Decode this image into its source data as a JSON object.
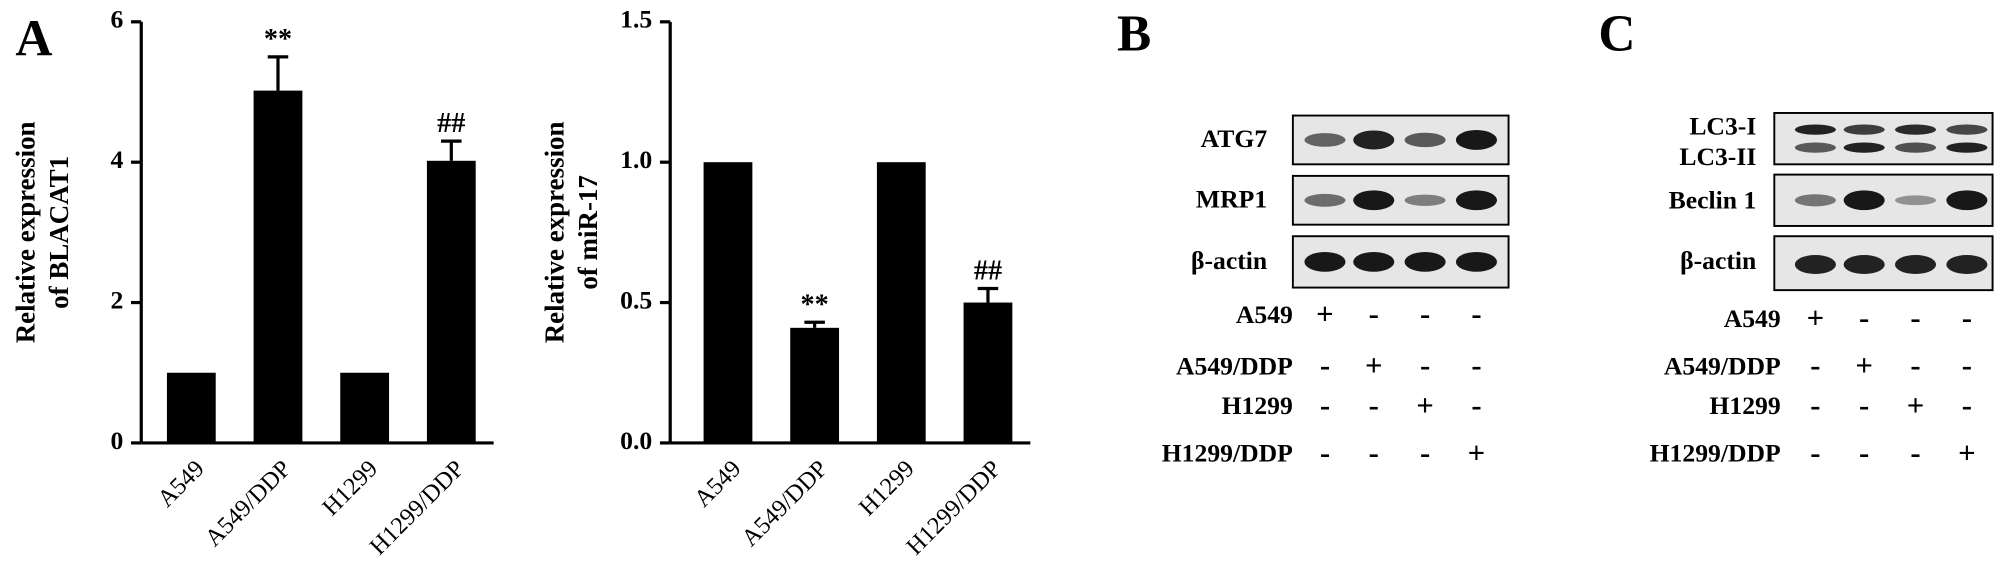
{
  "panel_labels": [
    "A",
    "B",
    "C"
  ],
  "chart_data": [
    {
      "type": "bar",
      "ylabel": [
        "Relative expression",
        "of  BLACAT1"
      ],
      "categories": [
        "A549",
        "A549/DDP",
        "H1299",
        "H1299/DDP"
      ],
      "values": [
        1,
        5.02,
        1,
        4.02
      ],
      "errors": [
        0,
        0.48,
        0,
        0.28
      ],
      "annotations": [
        null,
        "**",
        null,
        "##"
      ],
      "color": "#000000",
      "ylim": [
        0,
        6
      ],
      "yticks": [
        0,
        2,
        4,
        6
      ]
    },
    {
      "type": "bar",
      "ylabel": [
        "Relative expression",
        "of miR-17"
      ],
      "categories": [
        "A549",
        "A549/DDP",
        "H1299",
        "H1299/DDP"
      ],
      "values": [
        1,
        0.41,
        1,
        0.5
      ],
      "errors": [
        0,
        0.02,
        0,
        0.05
      ],
      "annotations": [
        null,
        "**",
        null,
        "##"
      ],
      "color": "#000000",
      "ylim": [
        0,
        1.5
      ],
      "yticks": [
        {
          "value": 0,
          "label": "0.0"
        },
        {
          "value": 0.5,
          "label": "0.5"
        },
        {
          "value": 1,
          "label": "1.0"
        },
        {
          "value": 1.5,
          "label": "1.5"
        }
      ]
    }
  ],
  "blots": [
    {
      "proteins": [
        "ATG7",
        "MRP1",
        "β-actin"
      ],
      "samples": [
        {
          "name": "A549",
          "signs": [
            "+",
            "-",
            "-",
            "-"
          ]
        },
        {
          "name": "A549/DDP",
          "signs": [
            "-",
            "+",
            "-",
            "-"
          ]
        },
        {
          "name": "H1299",
          "signs": [
            "-",
            "-",
            "+",
            "-"
          ]
        },
        {
          "name": "H1299/DDP",
          "signs": [
            "-",
            "-",
            "-",
            "+"
          ]
        }
      ]
    },
    {
      "proteins": [
        "LC3-I",
        "LC3-II",
        "Beclin 1",
        "β-actin"
      ],
      "samples": [
        {
          "name": "A549",
          "signs": [
            "+",
            "-",
            "-",
            "-"
          ]
        },
        {
          "name": "A549/DDP",
          "signs": [
            "-",
            "+",
            "-",
            "-"
          ]
        },
        {
          "name": "H1299",
          "signs": [
            "-",
            "-",
            "+",
            "-"
          ]
        },
        {
          "name": "H1299/DDP",
          "signs": [
            "-",
            "-",
            "-",
            "+"
          ]
        }
      ]
    }
  ]
}
